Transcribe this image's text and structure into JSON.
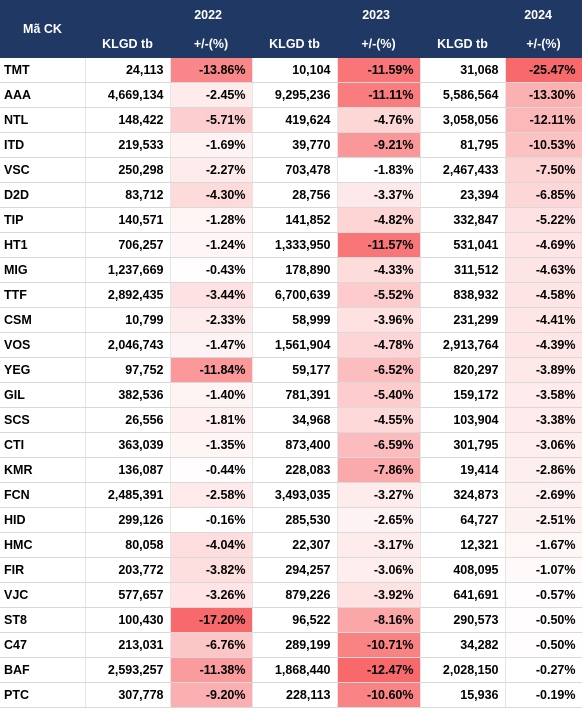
{
  "header": {
    "code": "Mã CK",
    "columns": [
      {
        "year": "2022",
        "volume": "KLGD tb",
        "change": "+/-(%)"
      },
      {
        "year": "2023",
        "volume": "KLGD tb",
        "change": "+/-(%)"
      },
      {
        "year": "2024",
        "volume": "KLGD tb",
        "change": "+/-(%)"
      }
    ]
  },
  "heat_colors": [
    "#ffffff",
    "#f8696b"
  ],
  "rows": [
    [
      "TMT",
      "24,113",
      "-13.86%",
      "10,104",
      "-11.59%",
      "31,068",
      "-25.47%"
    ],
    [
      "AAA",
      "4,669,134",
      "-2.45%",
      "9,295,236",
      "-11.11%",
      "5,586,564",
      "-13.30%"
    ],
    [
      "NTL",
      "148,422",
      "-5.71%",
      "419,624",
      "-4.76%",
      "3,058,056",
      "-12.11%"
    ],
    [
      "ITD",
      "219,533",
      "-1.69%",
      "39,770",
      "-9.21%",
      "81,795",
      "-10.53%"
    ],
    [
      "VSC",
      "250,298",
      "-2.27%",
      "703,478",
      "-1.83%",
      "2,467,433",
      "-7.50%"
    ],
    [
      "D2D",
      "83,712",
      "-4.30%",
      "28,756",
      "-3.37%",
      "23,394",
      "-6.85%"
    ],
    [
      "TIP",
      "140,571",
      "-1.28%",
      "141,852",
      "-4.82%",
      "332,847",
      "-5.22%"
    ],
    [
      "HT1",
      "706,257",
      "-1.24%",
      "1,333,950",
      "-11.57%",
      "531,041",
      "-4.69%"
    ],
    [
      "MIG",
      "1,237,669",
      "-0.43%",
      "178,890",
      "-4.33%",
      "311,512",
      "-4.63%"
    ],
    [
      "TTF",
      "2,892,435",
      "-3.44%",
      "6,700,639",
      "-5.52%",
      "838,932",
      "-4.58%"
    ],
    [
      "CSM",
      "10,799",
      "-2.33%",
      "58,999",
      "-3.96%",
      "231,299",
      "-4.41%"
    ],
    [
      "VOS",
      "2,046,743",
      "-1.47%",
      "1,561,904",
      "-4.78%",
      "2,913,764",
      "-4.39%"
    ],
    [
      "YEG",
      "97,752",
      "-11.84%",
      "59,177",
      "-6.52%",
      "820,297",
      "-3.89%"
    ],
    [
      "GIL",
      "382,536",
      "-1.40%",
      "781,391",
      "-5.40%",
      "159,172",
      "-3.58%"
    ],
    [
      "SCS",
      "26,556",
      "-1.81%",
      "34,968",
      "-4.55%",
      "103,904",
      "-3.38%"
    ],
    [
      "CTI",
      "363,039",
      "-1.35%",
      "873,400",
      "-6.59%",
      "301,795",
      "-3.06%"
    ],
    [
      "KMR",
      "136,087",
      "-0.44%",
      "228,083",
      "-7.86%",
      "19,414",
      "-2.86%"
    ],
    [
      "FCN",
      "2,485,391",
      "-2.58%",
      "3,493,035",
      "-3.27%",
      "324,873",
      "-2.69%"
    ],
    [
      "HID",
      "299,126",
      "-0.16%",
      "285,530",
      "-2.65%",
      "64,727",
      "-2.51%"
    ],
    [
      "HMC",
      "80,058",
      "-4.04%",
      "22,307",
      "-3.17%",
      "12,321",
      "-1.67%"
    ],
    [
      "FIR",
      "203,772",
      "-3.82%",
      "294,257",
      "-3.06%",
      "408,095",
      "-1.07%"
    ],
    [
      "VJC",
      "577,657",
      "-3.26%",
      "879,226",
      "-3.92%",
      "641,691",
      "-0.57%"
    ],
    [
      "ST8",
      "100,430",
      "-17.20%",
      "96,522",
      "-8.16%",
      "290,573",
      "-0.50%"
    ],
    [
      "C47",
      "213,031",
      "-6.76%",
      "289,199",
      "-10.71%",
      "34,282",
      "-0.50%"
    ],
    [
      "BAF",
      "2,593,257",
      "-11.38%",
      "1,868,440",
      "-12.47%",
      "2,028,150",
      "-0.27%"
    ],
    [
      "PTC",
      "307,778",
      "-9.20%",
      "228,113",
      "-10.60%",
      "15,936",
      "-0.19%"
    ]
  ]
}
